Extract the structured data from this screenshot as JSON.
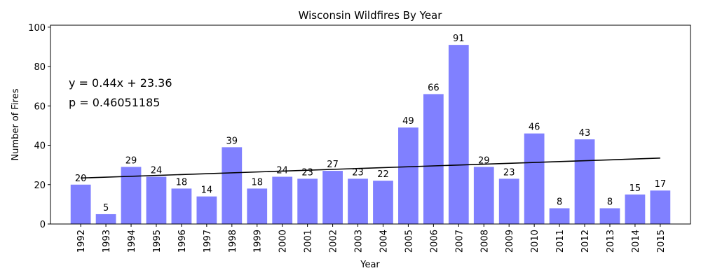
{
  "chart_data": {
    "type": "bar",
    "title": "Wisconsin Wildfires By Year",
    "xlabel": "Year",
    "ylabel": "Number of Fires",
    "categories": [
      "1992",
      "1993",
      "1994",
      "1995",
      "1996",
      "1997",
      "1998",
      "1999",
      "2000",
      "2001",
      "2002",
      "2003",
      "2004",
      "2005",
      "2006",
      "2007",
      "2008",
      "2009",
      "2010",
      "2011",
      "2012",
      "2013",
      "2014",
      "2015"
    ],
    "values": [
      20,
      5,
      29,
      24,
      18,
      14,
      39,
      18,
      24,
      23,
      27,
      23,
      22,
      49,
      66,
      91,
      29,
      23,
      46,
      8,
      43,
      8,
      15,
      17
    ],
    "ylim": [
      0,
      101
    ],
    "yticks": [
      0,
      20,
      40,
      60,
      80,
      100
    ],
    "bar_color": "#8080ff",
    "trendline": {
      "slope": 0.44,
      "intercept": 23.36,
      "color": "#000000"
    },
    "annotations": [
      "y = 0.44x + 23.36",
      "p = 0.46051185"
    ],
    "grid": false
  }
}
